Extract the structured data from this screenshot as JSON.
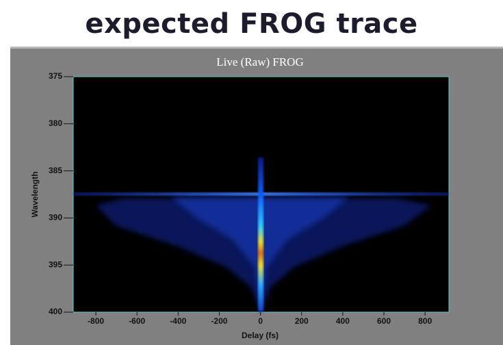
{
  "header": {
    "title": "expected FROG trace"
  },
  "chart_data": {
    "type": "heatmap",
    "title": "Live (Raw) FROG",
    "x_label": "Delay (fs)",
    "y_label": "Wavelength",
    "xlim": [
      -910,
      916
    ],
    "xticks": [
      -800,
      -600,
      -400,
      -200,
      0,
      200,
      400,
      600,
      800
    ],
    "ylim": [
      375,
      400
    ],
    "yticks": [
      375,
      380,
      385,
      390,
      395,
      400
    ],
    "y_inverted": true
  }
}
